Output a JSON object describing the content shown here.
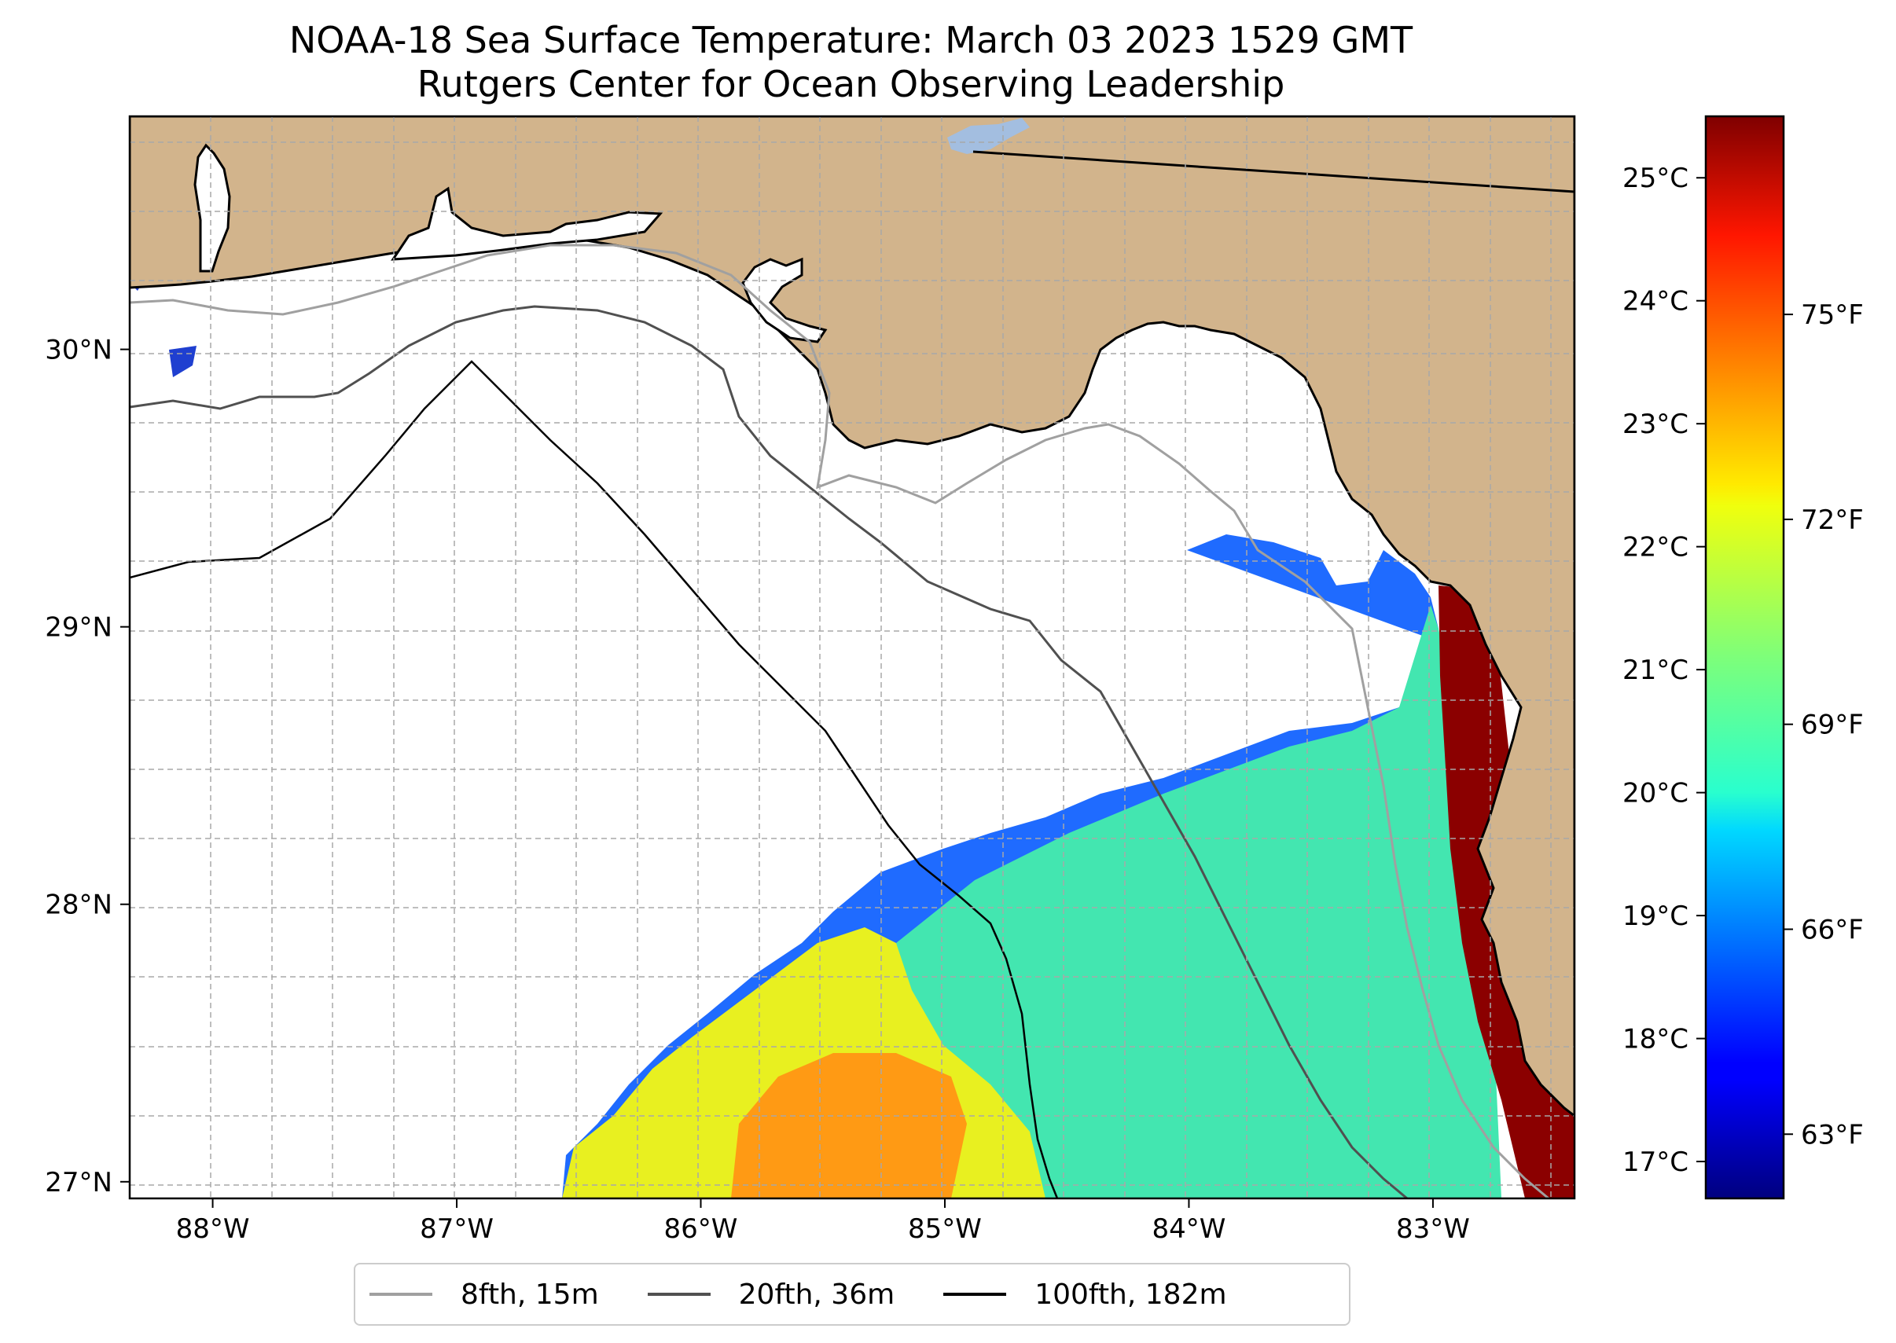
{
  "title": {
    "line1": "NOAA-18 Sea Surface Temperature: March 03 2023 1529 GMT",
    "line2": "Rutgers Center for Ocean Observing Leadership"
  },
  "map": {
    "lon_range": [
      -88.34,
      -82.42
    ],
    "lat_range": [
      26.94,
      30.84
    ],
    "x_ticks": [
      {
        "lon": -88,
        "label": "88°W"
      },
      {
        "lon": -87,
        "label": "87°W"
      },
      {
        "lon": -86,
        "label": "86°W"
      },
      {
        "lon": -85,
        "label": "85°W"
      },
      {
        "lon": -84,
        "label": "84°W"
      },
      {
        "lon": -83,
        "label": "83°W"
      }
    ],
    "y_ticks": [
      {
        "lat": 27,
        "label": "27°N"
      },
      {
        "lat": 28,
        "label": "28°N"
      },
      {
        "lat": 29,
        "label": "29°N"
      },
      {
        "lat": 30,
        "label": "30°N"
      }
    ],
    "land_color": "#d2b48c",
    "lake_color": "#a3bee0",
    "no_data_color": "#ffffff",
    "data_regions": [
      {
        "name": "bluish-fringe",
        "color": "#1f6bff"
      },
      {
        "name": "cyan-green-shelf",
        "color": "#43e6b0"
      },
      {
        "name": "yellow-offshore",
        "color": "#e8f020"
      },
      {
        "name": "orange-southwest",
        "color": "#ff9a14"
      },
      {
        "name": "warm-coastal-strip",
        "color": "#8b0000"
      }
    ]
  },
  "colorbar": {
    "range_c": [
      16.7,
      25.5
    ],
    "c_ticks": [
      {
        "value": 17,
        "label": "17°C"
      },
      {
        "value": 18,
        "label": "18°C"
      },
      {
        "value": 19,
        "label": "19°C"
      },
      {
        "value": 20,
        "label": "20°C"
      },
      {
        "value": 21,
        "label": "21°C"
      },
      {
        "value": 22,
        "label": "22°C"
      },
      {
        "value": 23,
        "label": "23°C"
      },
      {
        "value": 24,
        "label": "24°C"
      },
      {
        "value": 25,
        "label": "25°C"
      }
    ],
    "f_ticks": [
      {
        "value": 63,
        "label": "63°F"
      },
      {
        "value": 66,
        "label": "66°F"
      },
      {
        "value": 69,
        "label": "69°F"
      },
      {
        "value": 72,
        "label": "72°F"
      },
      {
        "value": 75,
        "label": "75°F"
      }
    ],
    "colormap": "jet"
  },
  "legend": {
    "items": [
      {
        "label": "8fth, 15m",
        "color": "#a0a0a0"
      },
      {
        "label": "20fth, 36m",
        "color": "#505050"
      },
      {
        "label": "100fth, 182m",
        "color": "#000000"
      }
    ]
  }
}
